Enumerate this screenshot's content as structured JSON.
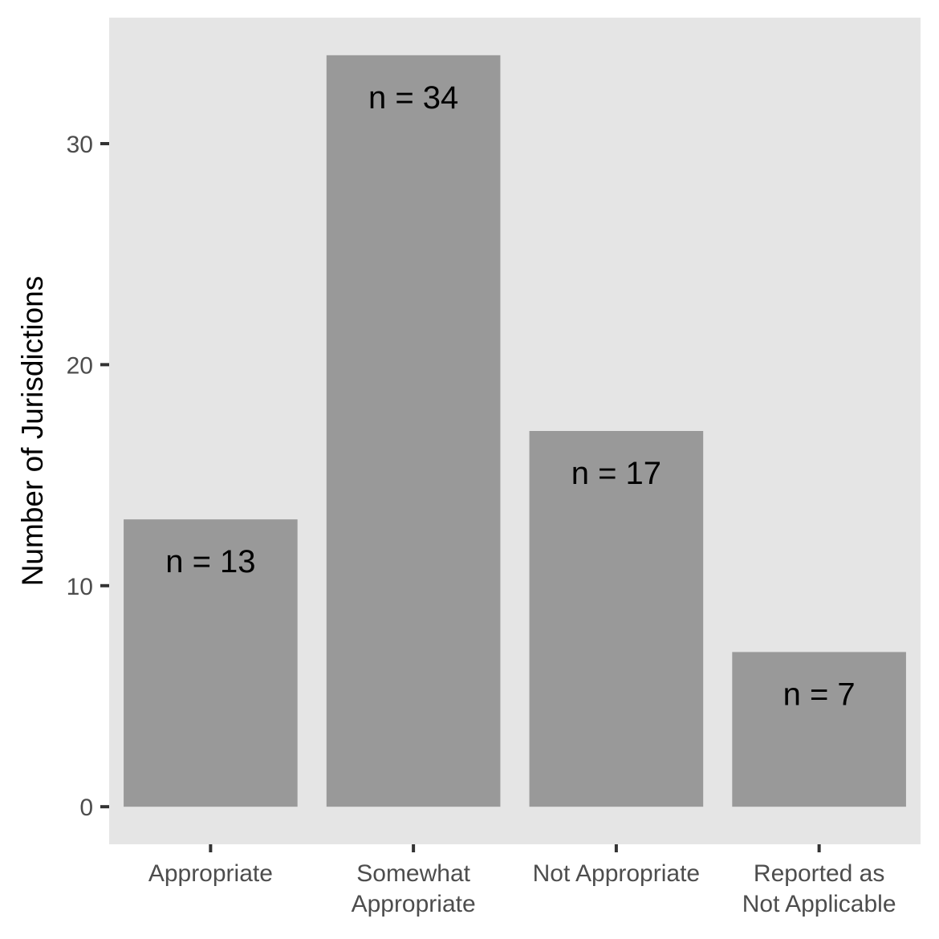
{
  "chart_data": {
    "type": "bar",
    "title": "",
    "xlabel": "",
    "ylabel": "Number of Jurisdictions",
    "categories": [
      [
        "Appropriate"
      ],
      [
        "Somewhat",
        "Appropriate"
      ],
      [
        "Not Appropriate"
      ],
      [
        "Reported as",
        "Not Applicable"
      ]
    ],
    "values": [
      13,
      34,
      17,
      7
    ],
    "data_labels": [
      "n = 13",
      "n = 34",
      "n = 17",
      "n = 7"
    ],
    "yticks": [
      0,
      10,
      20,
      30
    ],
    "ylim": [
      -1.7,
      35.7
    ],
    "grid": false,
    "legend": "none",
    "colors": {
      "panel_background": "#e5e5e5",
      "bar_fill": "#999999",
      "tick_color": "#333333",
      "tick_label_color": "#4d4d4d",
      "text_color": "#000000"
    }
  }
}
